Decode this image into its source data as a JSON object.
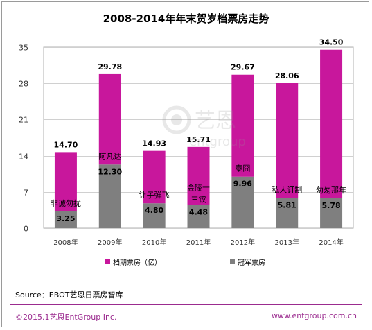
{
  "title": "2008-2014年年末贺岁档票房走势",
  "source": "Source：EBOT艺恩日票房智库",
  "footer": {
    "copyright": "©2015.1艺恩EntGroup Inc.",
    "url": "www.entgroup.com.cn"
  },
  "watermark": {
    "brand": "艺恩",
    "sub": "entgroup"
  },
  "colors": {
    "total": "#c8179c",
    "champion": "#7f7f7f"
  },
  "chart_data": {
    "type": "bar",
    "categories": [
      "2008年",
      "2009年",
      "2010年",
      "2011年",
      "2012年",
      "2013年",
      "2014年"
    ],
    "ylim": [
      0,
      35
    ],
    "yticks": [
      0,
      7,
      14,
      21,
      28,
      35
    ],
    "grid": true,
    "legend_position": "bottom",
    "series": [
      {
        "name": "档期票房（亿）",
        "values": [
          14.7,
          29.78,
          14.93,
          15.71,
          29.67,
          28.06,
          34.5
        ]
      },
      {
        "name": "冠军票房",
        "values": [
          3.25,
          12.3,
          4.8,
          4.48,
          9.96,
          5.81,
          5.78
        ]
      }
    ],
    "total_labels": [
      "14.70",
      "29.78",
      "14.93",
      "15.71",
      "29.67",
      "28.06",
      "34.50"
    ],
    "champion_labels": [
      "3.25",
      "12.30",
      "4.80",
      "4.48",
      "9.96",
      "5.81",
      "5.78"
    ],
    "film_names": [
      "非诚勿扰",
      "阿凡达",
      "让子弹飞",
      "金陵十三钗",
      "泰囧",
      "私人订制",
      "匆匆那年"
    ]
  }
}
